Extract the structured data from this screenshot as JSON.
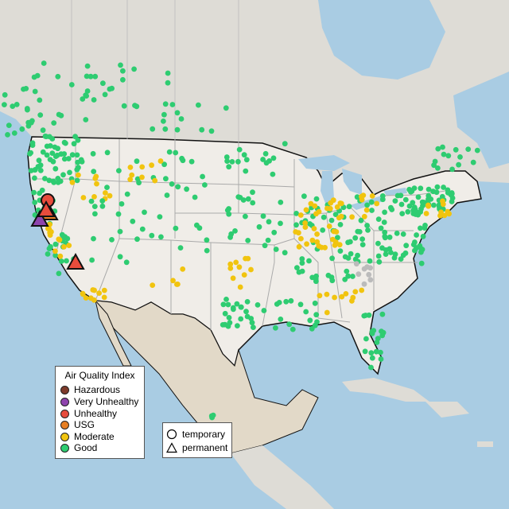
{
  "map": {
    "colors": {
      "ocean": "#a9cce3",
      "land_us": "#f0ede8",
      "land_other": "#dedcd6",
      "mexico": "#e2d9c8",
      "state_border": "#aaaaaa",
      "country_border": "#111111"
    },
    "aqi_colors": {
      "hazardous": "#7e3b2b",
      "very_unhealthy": "#8e44ad",
      "unhealthy": "#e74c3c",
      "usg": "#e67e22",
      "moderate": "#f1c40f",
      "good": "#2ecc71",
      "no_data": "#bbbbbb"
    }
  },
  "legend_aqi": {
    "title": "Air Quality Index",
    "items": [
      {
        "label": "Hazardous",
        "color": "#7e3b2b"
      },
      {
        "label": "Very Unhealthy",
        "color": "#8e44ad"
      },
      {
        "label": "Unhealthy",
        "color": "#e74c3c"
      },
      {
        "label": "USG",
        "color": "#e67e22"
      },
      {
        "label": "Moderate",
        "color": "#f1c40f"
      },
      {
        "label": "Good",
        "color": "#2ecc71"
      }
    ]
  },
  "legend_shape": {
    "items": [
      {
        "label": "temporary",
        "shape": "circle"
      },
      {
        "label": "permanent",
        "shape": "triangle"
      }
    ]
  }
}
